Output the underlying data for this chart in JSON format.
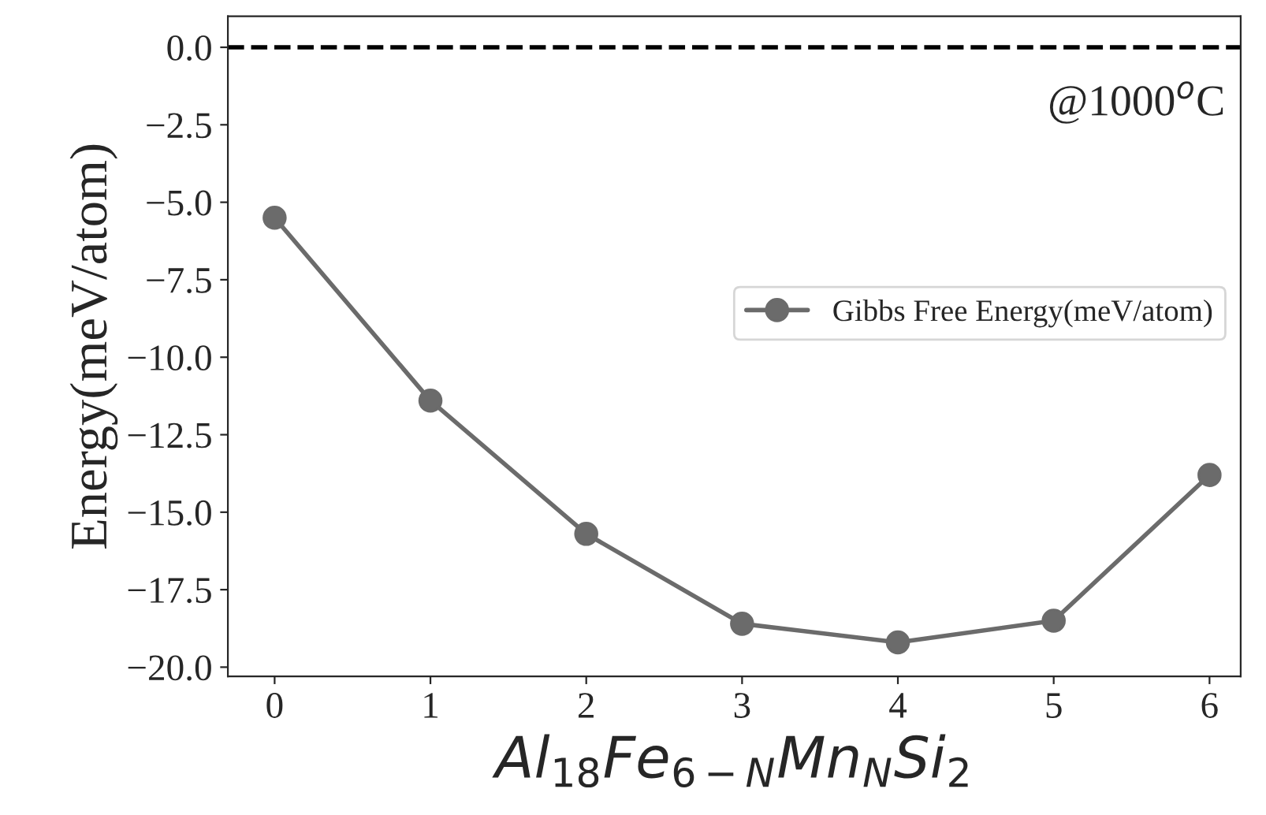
{
  "chart_data": {
    "type": "line",
    "xlabel": "Al$_{18}$Fe$_{6−N}$Mn$_{N}$Si$_{2}$",
    "ylabel": "Energy(meV/atom)",
    "x": [
      0,
      1,
      2,
      3,
      4,
      5,
      6
    ],
    "series": [
      {
        "name": "Gibbs Free Energy(meV/atom)",
        "color": "#6b6b6b",
        "values": [
          -5.5,
          -11.4,
          -15.7,
          -18.6,
          -19.2,
          -18.5,
          -13.8
        ]
      }
    ],
    "xlim": [
      -0.3,
      6.2
    ],
    "xticks": [
      0,
      1,
      2,
      3,
      4,
      5,
      6
    ],
    "ylim": [
      -20.3,
      1.0
    ],
    "yticks": [
      {
        "value": 0,
        "label": "0.0"
      },
      {
        "value": -2.5,
        "label": "−2.5"
      },
      {
        "value": -5,
        "label": "−5.0"
      },
      {
        "value": -7.5,
        "label": "−7.5"
      },
      {
        "value": -10,
        "label": "−10.0"
      },
      {
        "value": -12.5,
        "label": "−12.5"
      },
      {
        "value": -15,
        "label": "−15.0"
      },
      {
        "value": -17.5,
        "label": "−17.5"
      },
      {
        "value": -20,
        "label": "−20.0"
      }
    ],
    "ref_lines": [
      {
        "axis": "y",
        "value": 0,
        "color": "#000000",
        "line_style": "dashed"
      }
    ],
    "annotations": [
      "@1000$^{o}$C"
    ],
    "marker": "circle",
    "line_style": "solid",
    "grid": false,
    "legend": "right"
  }
}
